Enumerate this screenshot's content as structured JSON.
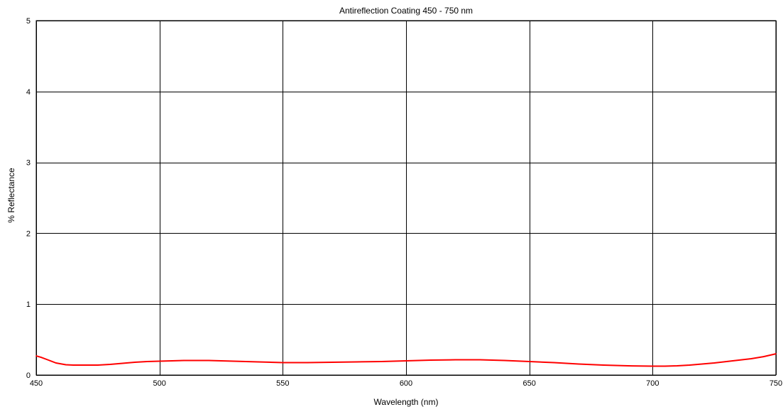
{
  "chart_data": {
    "type": "line",
    "title": "Antireflection Coating 450 - 750 nm",
    "xlabel": "Wavelength (nm)",
    "ylabel": "% Reflectance",
    "xlim": [
      450,
      750
    ],
    "ylim": [
      0,
      5
    ],
    "x_ticks": [
      "450",
      "500",
      "550",
      "600",
      "650",
      "700",
      "750"
    ],
    "y_ticks": [
      "0",
      "1",
      "2",
      "3",
      "4",
      "5"
    ],
    "grid": true,
    "legend": "none",
    "series": [
      {
        "color": "#ff0000",
        "x": [
          450,
          452,
          455,
          458,
          462,
          465,
          470,
          475,
          480,
          485,
          490,
          495,
          500,
          505,
          510,
          515,
          520,
          530,
          540,
          550,
          560,
          570,
          580,
          590,
          600,
          610,
          620,
          630,
          640,
          650,
          660,
          670,
          680,
          690,
          700,
          705,
          710,
          715,
          720,
          725,
          730,
          735,
          740,
          745,
          750
        ],
        "y": [
          0.27,
          0.25,
          0.21,
          0.17,
          0.145,
          0.14,
          0.14,
          0.14,
          0.15,
          0.165,
          0.18,
          0.19,
          0.195,
          0.2,
          0.205,
          0.205,
          0.205,
          0.195,
          0.185,
          0.175,
          0.175,
          0.18,
          0.185,
          0.19,
          0.2,
          0.21,
          0.215,
          0.215,
          0.205,
          0.19,
          0.175,
          0.155,
          0.14,
          0.13,
          0.125,
          0.125,
          0.13,
          0.14,
          0.155,
          0.17,
          0.19,
          0.21,
          0.23,
          0.26,
          0.3
        ]
      }
    ]
  }
}
